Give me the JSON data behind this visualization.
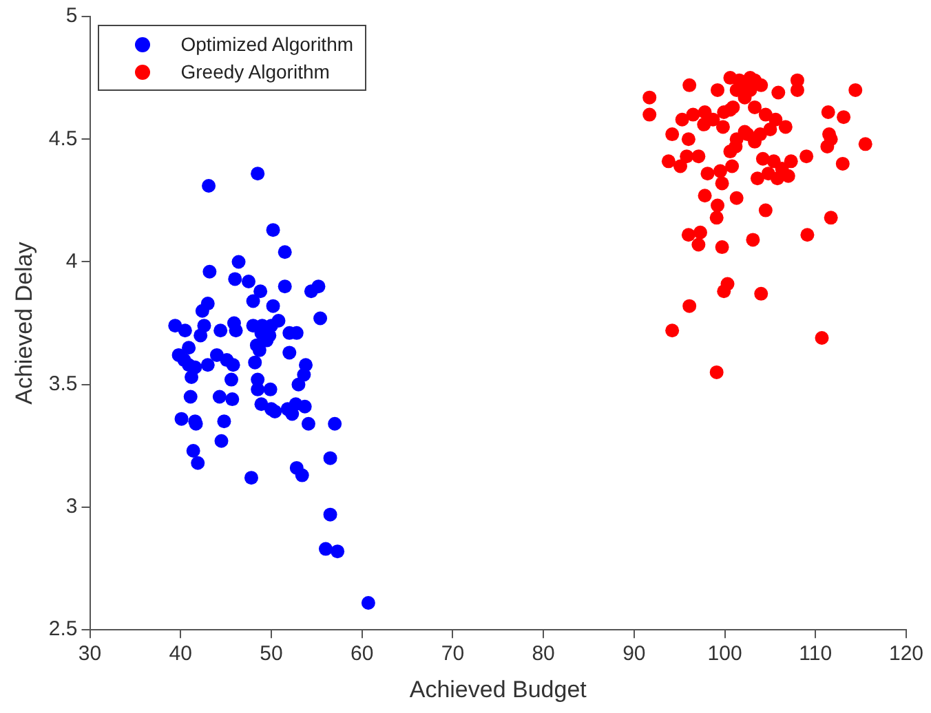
{
  "chart_data": {
    "type": "scatter",
    "xlabel": "Achieved Budget",
    "ylabel": "Achieved Delay",
    "xlim": [
      30,
      120
    ],
    "xticks": [
      30,
      40,
      50,
      60,
      70,
      80,
      90,
      100,
      110,
      120
    ],
    "ylim": [
      2.5,
      5
    ],
    "yticks": [
      2.5,
      3,
      3.5,
      4,
      4.5,
      5
    ],
    "grid": false,
    "legend": "top left",
    "marker": "circle",
    "series": [
      {
        "name": "Optimized Algorithm",
        "color": "#0000ff",
        "x": [
          43.1,
          48.5,
          50.2,
          51.5,
          46.4,
          43.2,
          46.0,
          47.5,
          48.8,
          51.5,
          54.4,
          55.2,
          55.4,
          43.0,
          42.4,
          48.0,
          50.2,
          39.4,
          40.5,
          42.6,
          42.2,
          44.4,
          45.9,
          46.1,
          48.0,
          49.0,
          50.0,
          50.8,
          52.0,
          52.8,
          48.9,
          49.5,
          48.4,
          49.8,
          48.7,
          48.2,
          52.0,
          53.8,
          53.6,
          39.8,
          40.4,
          40.9,
          41.2,
          40.9,
          41.6,
          43.0,
          44.0,
          45.1,
          45.8,
          45.6,
          48.5,
          49.9,
          48.5,
          53.0,
          41.1,
          44.3,
          45.7,
          48.9,
          50.0,
          50.4,
          51.8,
          52.7,
          53.7,
          54.1,
          52.3,
          57.0,
          40.1,
          41.6,
          41.7,
          44.8,
          44.5,
          41.4,
          41.9,
          56.5,
          47.8,
          52.8,
          53.4,
          56.5,
          56.0,
          57.3,
          60.7
        ],
        "values": [
          4.31,
          4.36,
          4.13,
          4.04,
          4.0,
          3.96,
          3.93,
          3.92,
          3.88,
          3.9,
          3.88,
          3.9,
          3.77,
          3.83,
          3.8,
          3.84,
          3.82,
          3.74,
          3.72,
          3.74,
          3.7,
          3.72,
          3.75,
          3.72,
          3.74,
          3.74,
          3.74,
          3.76,
          3.71,
          3.71,
          3.71,
          3.68,
          3.66,
          3.7,
          3.64,
          3.59,
          3.63,
          3.58,
          3.54,
          3.62,
          3.6,
          3.58,
          3.53,
          3.65,
          3.57,
          3.58,
          3.62,
          3.6,
          3.58,
          3.52,
          3.52,
          3.48,
          3.48,
          3.5,
          3.45,
          3.45,
          3.44,
          3.42,
          3.4,
          3.39,
          3.4,
          3.42,
          3.41,
          3.34,
          3.38,
          3.34,
          3.36,
          3.35,
          3.34,
          3.35,
          3.27,
          3.23,
          3.18,
          3.2,
          3.12,
          3.16,
          3.13,
          2.97,
          2.83,
          2.82,
          2.61
        ]
      },
      {
        "name": "Greedy Algorithm",
        "color": "#ff0000",
        "x": [
          91.7,
          91.7,
          96.1,
          99.2,
          100.6,
          101.6,
          102.8,
          103.3,
          102.2,
          101.3,
          102.8,
          104.0,
          105.9,
          108.0,
          108.0,
          114.4,
          102.2,
          103.3,
          104.5,
          105.6,
          106.7,
          105.0,
          99.9,
          100.6,
          100.9,
          97.8,
          96.5,
          95.3,
          98.7,
          99.8,
          97.7,
          94.2,
          96.0,
          101.3,
          102.5,
          103.3,
          103.9,
          102.2,
          100.6,
          101.2,
          111.4,
          113.1,
          111.5,
          111.7,
          111.3,
          115.5,
          93.8,
          95.1,
          95.8,
          97.1,
          98.1,
          99.5,
          100.8,
          99.7,
          104.2,
          105.4,
          106.3,
          107.3,
          103.6,
          104.8,
          105.8,
          107.0,
          109.0,
          113.0,
          97.8,
          101.3,
          99.2,
          104.5,
          99.1,
          111.7,
          96.0,
          97.3,
          97.1,
          103.1,
          99.7,
          109.1,
          100.3,
          99.9,
          104.0,
          96.1,
          94.2,
          110.7,
          99.1
        ],
        "values": [
          4.67,
          4.6,
          4.72,
          4.7,
          4.75,
          4.74,
          4.75,
          4.74,
          4.71,
          4.7,
          4.7,
          4.72,
          4.69,
          4.74,
          4.7,
          4.7,
          4.67,
          4.63,
          4.6,
          4.58,
          4.55,
          4.54,
          4.61,
          4.62,
          4.63,
          4.61,
          4.6,
          4.58,
          4.58,
          4.55,
          4.56,
          4.52,
          4.5,
          4.5,
          4.52,
          4.49,
          4.52,
          4.53,
          4.45,
          4.47,
          4.61,
          4.59,
          4.52,
          4.5,
          4.47,
          4.48,
          4.41,
          4.39,
          4.43,
          4.43,
          4.36,
          4.37,
          4.39,
          4.32,
          4.42,
          4.41,
          4.38,
          4.41,
          4.34,
          4.36,
          4.34,
          4.35,
          4.43,
          4.4,
          4.27,
          4.26,
          4.23,
          4.21,
          4.18,
          4.18,
          4.11,
          4.12,
          4.07,
          4.09,
          4.06,
          4.11,
          3.91,
          3.88,
          3.87,
          3.82,
          3.72,
          3.69,
          3.55
        ]
      }
    ]
  }
}
